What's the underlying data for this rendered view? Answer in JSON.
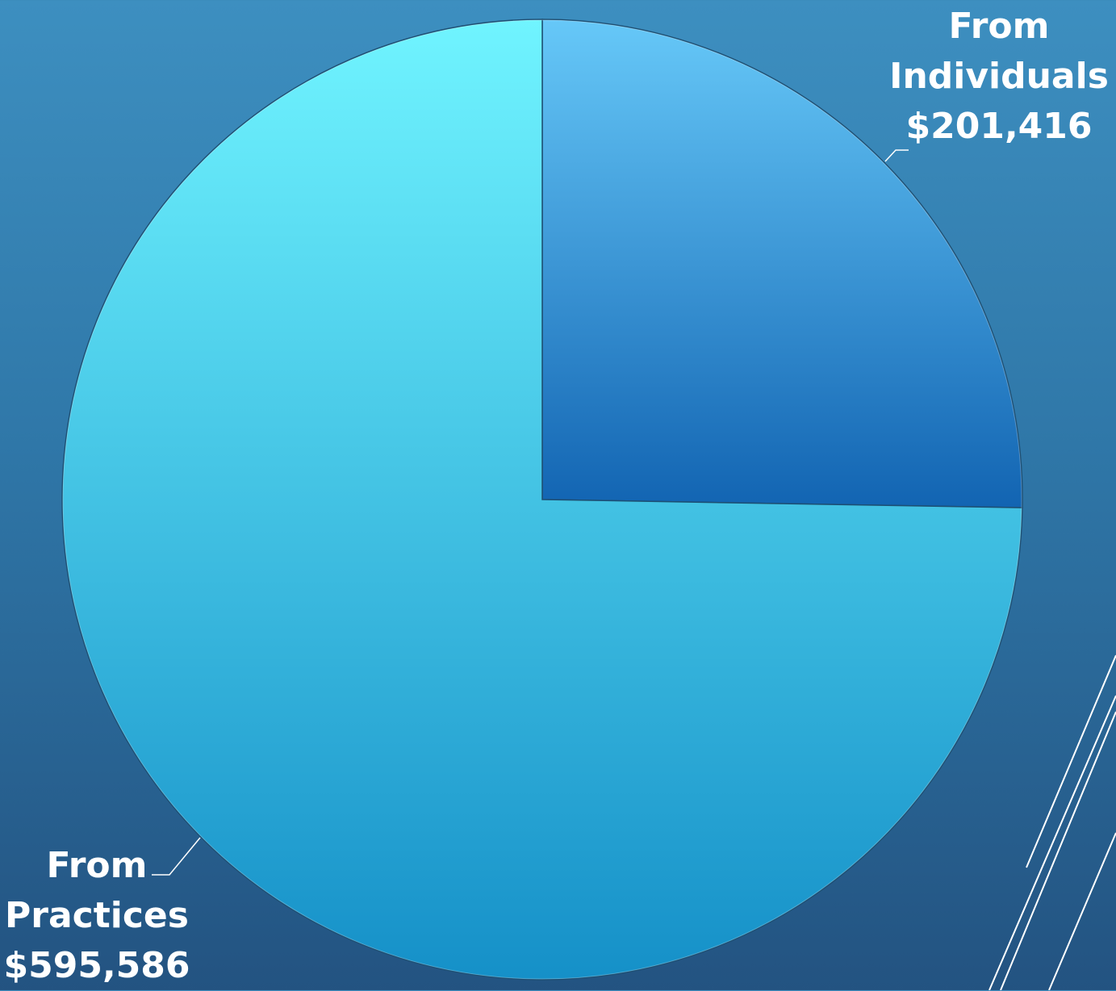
{
  "chart_data": {
    "type": "pie",
    "slices": [
      {
        "category": "From Individuals",
        "label_lines": [
          "From",
          "Individuals",
          "$201,416"
        ],
        "value": 201416,
        "color_top": "#66c8f8",
        "color_bottom": "#1264b2"
      },
      {
        "category": "From Practices",
        "label_lines": [
          "From",
          "Practices",
          "$595,586"
        ],
        "value": 595586,
        "color_top": "#70f4ff",
        "color_bottom": "#1590c8"
      }
    ],
    "start_angle": "12 o'clock",
    "direction": "clockwise",
    "label_color": "#ffffff",
    "background_top": "#3d8fc0",
    "background_bottom": "#235381"
  }
}
